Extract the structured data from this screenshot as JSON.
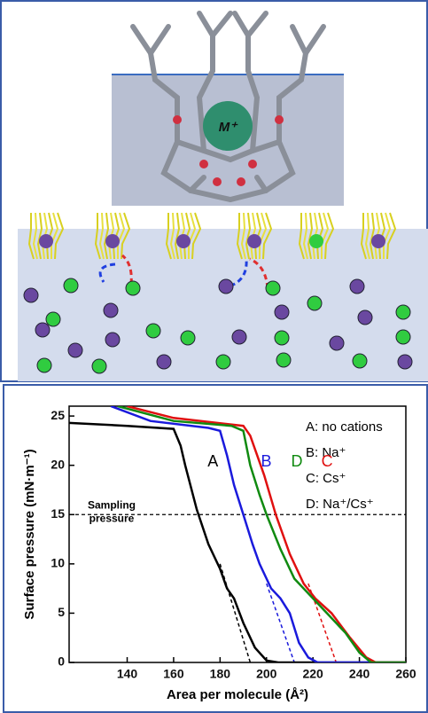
{
  "illustration": {
    "ion_label": "M⁺"
  },
  "chart_data": {
    "type": "line",
    "xlabel": "Area per molecule (Å²)",
    "ylabel": "Surface pressure (mN·m⁻¹)",
    "xlim": [
      115,
      260
    ],
    "ylim": [
      0,
      26
    ],
    "xticks": [
      140,
      160,
      180,
      200,
      220,
      240,
      260
    ],
    "yticks": [
      0,
      5,
      10,
      15,
      20,
      25
    ],
    "series": [
      {
        "name": "A: no cations",
        "label": "A",
        "color": "#000000",
        "x": [
          115,
          140,
          160,
          163,
          165,
          170,
          175,
          180,
          183,
          186,
          190,
          195,
          200,
          205,
          260
        ],
        "values": [
          24.3,
          24.0,
          23.7,
          22,
          20,
          15.5,
          12,
          9.5,
          7.5,
          6.5,
          4,
          1.5,
          0.2,
          0,
          0
        ]
      },
      {
        "name": "B: Na⁺",
        "label": "B",
        "color": "#1a1adc",
        "x": [
          133,
          150,
          175,
          180,
          183,
          186,
          190,
          194,
          197,
          202,
          206,
          210,
          214,
          218,
          222,
          260
        ],
        "values": [
          26,
          24.5,
          23.8,
          23.5,
          21,
          18,
          15,
          12,
          10,
          7.5,
          6.5,
          5,
          2,
          0.5,
          0,
          0
        ]
      },
      {
        "name": "C: Cs⁺",
        "label": "C",
        "color": "#e01010",
        "x": [
          140,
          160,
          190,
          193,
          199,
          204,
          210,
          216,
          221,
          228,
          236,
          243,
          247,
          260
        ],
        "values": [
          26,
          24.8,
          24,
          23,
          19,
          15,
          11,
          8,
          6.5,
          5,
          2.5,
          0.5,
          0,
          0
        ]
      },
      {
        "name": "D: Na⁺/Cs⁺",
        "label": "D",
        "color": "#108a10",
        "x": [
          136,
          160,
          185,
          190,
          193,
          197,
          200,
          206,
          212,
          220,
          226,
          234,
          240,
          245,
          260
        ],
        "values": [
          26,
          24.5,
          24,
          23.5,
          20,
          17,
          15,
          11.5,
          8.5,
          6.5,
          5,
          3,
          1,
          0,
          0
        ]
      }
    ],
    "extrapolations": [
      {
        "color": "#000000",
        "x": [
          180,
          193
        ],
        "values": [
          10,
          0
        ]
      },
      {
        "color": "#1a1adc",
        "x": [
          200,
          212
        ],
        "values": [
          8,
          0
        ]
      },
      {
        "color": "#e01010",
        "x": [
          218,
          230
        ],
        "values": [
          8,
          0
        ]
      }
    ],
    "sampling_pressure": {
      "value": 15,
      "label_lines": [
        "Sampling",
        "pressure"
      ]
    }
  }
}
